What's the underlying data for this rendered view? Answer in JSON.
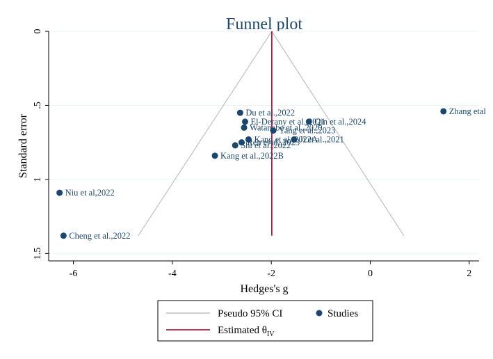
{
  "chart_data": {
    "type": "scatter",
    "title": "Funnel plot",
    "xlabel": "Hedges's g",
    "ylabel": "Standard error",
    "xlim": [
      -6.5,
      2.2
    ],
    "ylim": [
      0,
      1.55
    ],
    "y_reversed": true,
    "grid": "horizontal",
    "x_ticks": [
      {
        "value": -6,
        "label": "-6"
      },
      {
        "value": -4,
        "label": "-4"
      },
      {
        "value": -2,
        "label": "-2"
      },
      {
        "value": 0,
        "label": "0"
      },
      {
        "value": 2,
        "label": "2"
      }
    ],
    "y_ticks": [
      {
        "value": 0,
        "label": "0"
      },
      {
        "value": 0.5,
        "label": ".5"
      },
      {
        "value": 1,
        "label": "1"
      },
      {
        "value": 1.5,
        "label": "1.5"
      }
    ],
    "estimated_theta": -1.99,
    "pseudo_ci": {
      "apex_se": 0,
      "bottom_se": 1.38,
      "left_x": -4.69,
      "right_x": 0.68
    },
    "series": [
      {
        "name": "Studies",
        "points": [
          {
            "label": "Zhang etal",
            "x": 1.48,
            "y": 0.54
          },
          {
            "label": "Du et al.,2022",
            "x": -2.63,
            "y": 0.55
          },
          {
            "label": "Qin et al.,2024",
            "x": -1.24,
            "y": 0.61
          },
          {
            "label": "El-Derany et al.,2021",
            "x": -2.53,
            "y": 0.61
          },
          {
            "label": "Watanabe et al.,2020",
            "x": -2.55,
            "y": 0.65
          },
          {
            "label": "Yang et al.,2023",
            "x": -1.96,
            "y": 0.67
          },
          {
            "label": "Ji et al.,2021",
            "x": -1.54,
            "y": 0.73
          },
          {
            "label": "Kang et al.,2022A",
            "x": -2.46,
            "y": 0.73
          },
          {
            "label": "Ren et al.,2023",
            "x": -2.6,
            "y": 0.75
          },
          {
            "label": "Shi et al.,2022",
            "x": -2.73,
            "y": 0.77
          },
          {
            "label": "Kang et al.,2022B",
            "x": -3.14,
            "y": 0.84
          },
          {
            "label": "Niu et al,2022",
            "x": -6.28,
            "y": 1.09
          },
          {
            "label": "Cheng et al.,2022",
            "x": -6.2,
            "y": 1.38
          }
        ]
      }
    ],
    "legend": {
      "placement": "bottom",
      "items": [
        {
          "label": "Pseudo 95% CI",
          "color": "#c0c0c0",
          "marker": "line"
        },
        {
          "label": "Studies",
          "color": "#1a476f",
          "marker": "dot"
        },
        {
          "label": "Estimated θ",
          "subscript": "IV",
          "color": "#b5193b",
          "marker": "line"
        }
      ]
    },
    "colors": {
      "points": "#1a476f",
      "ci_lines": "#c0c0c0",
      "estimate_line": "#b5193b",
      "title": "#1a476f",
      "grid": "#eaf2f3"
    }
  }
}
